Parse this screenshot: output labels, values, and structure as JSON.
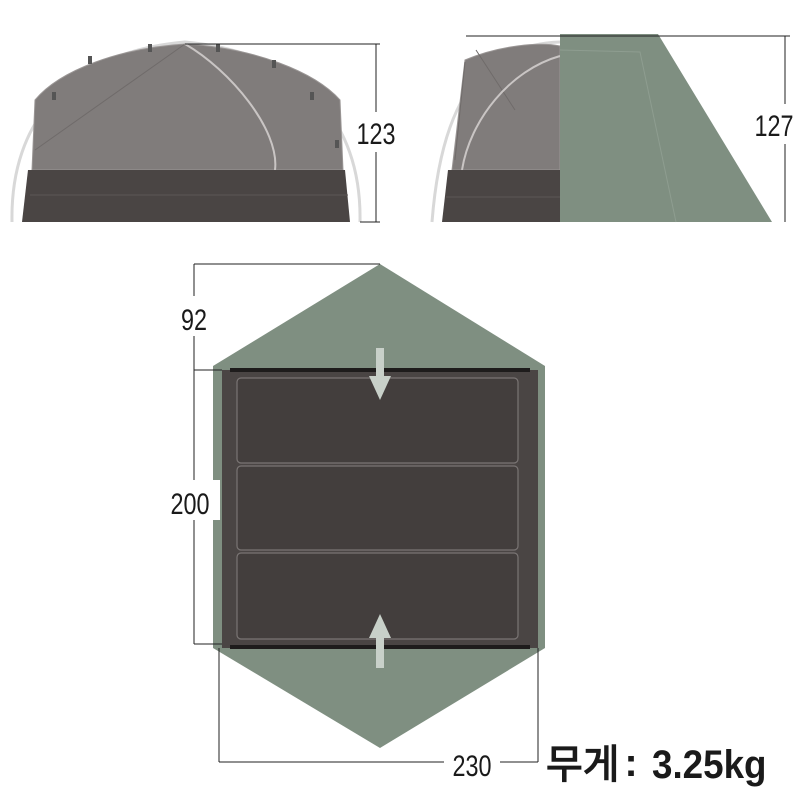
{
  "dimensions": {
    "front_height": "123",
    "side_height": "127",
    "vestibule_depth": "92",
    "floor_length": "200",
    "total_width": "230"
  },
  "weight": {
    "label": "무게",
    "separator": ":",
    "value": "3.25kg"
  },
  "colors": {
    "rainfly_green": "#7f8f81",
    "inner_gray": "#807c7b",
    "floor_dark": "#4a4544",
    "line": "#222222"
  }
}
